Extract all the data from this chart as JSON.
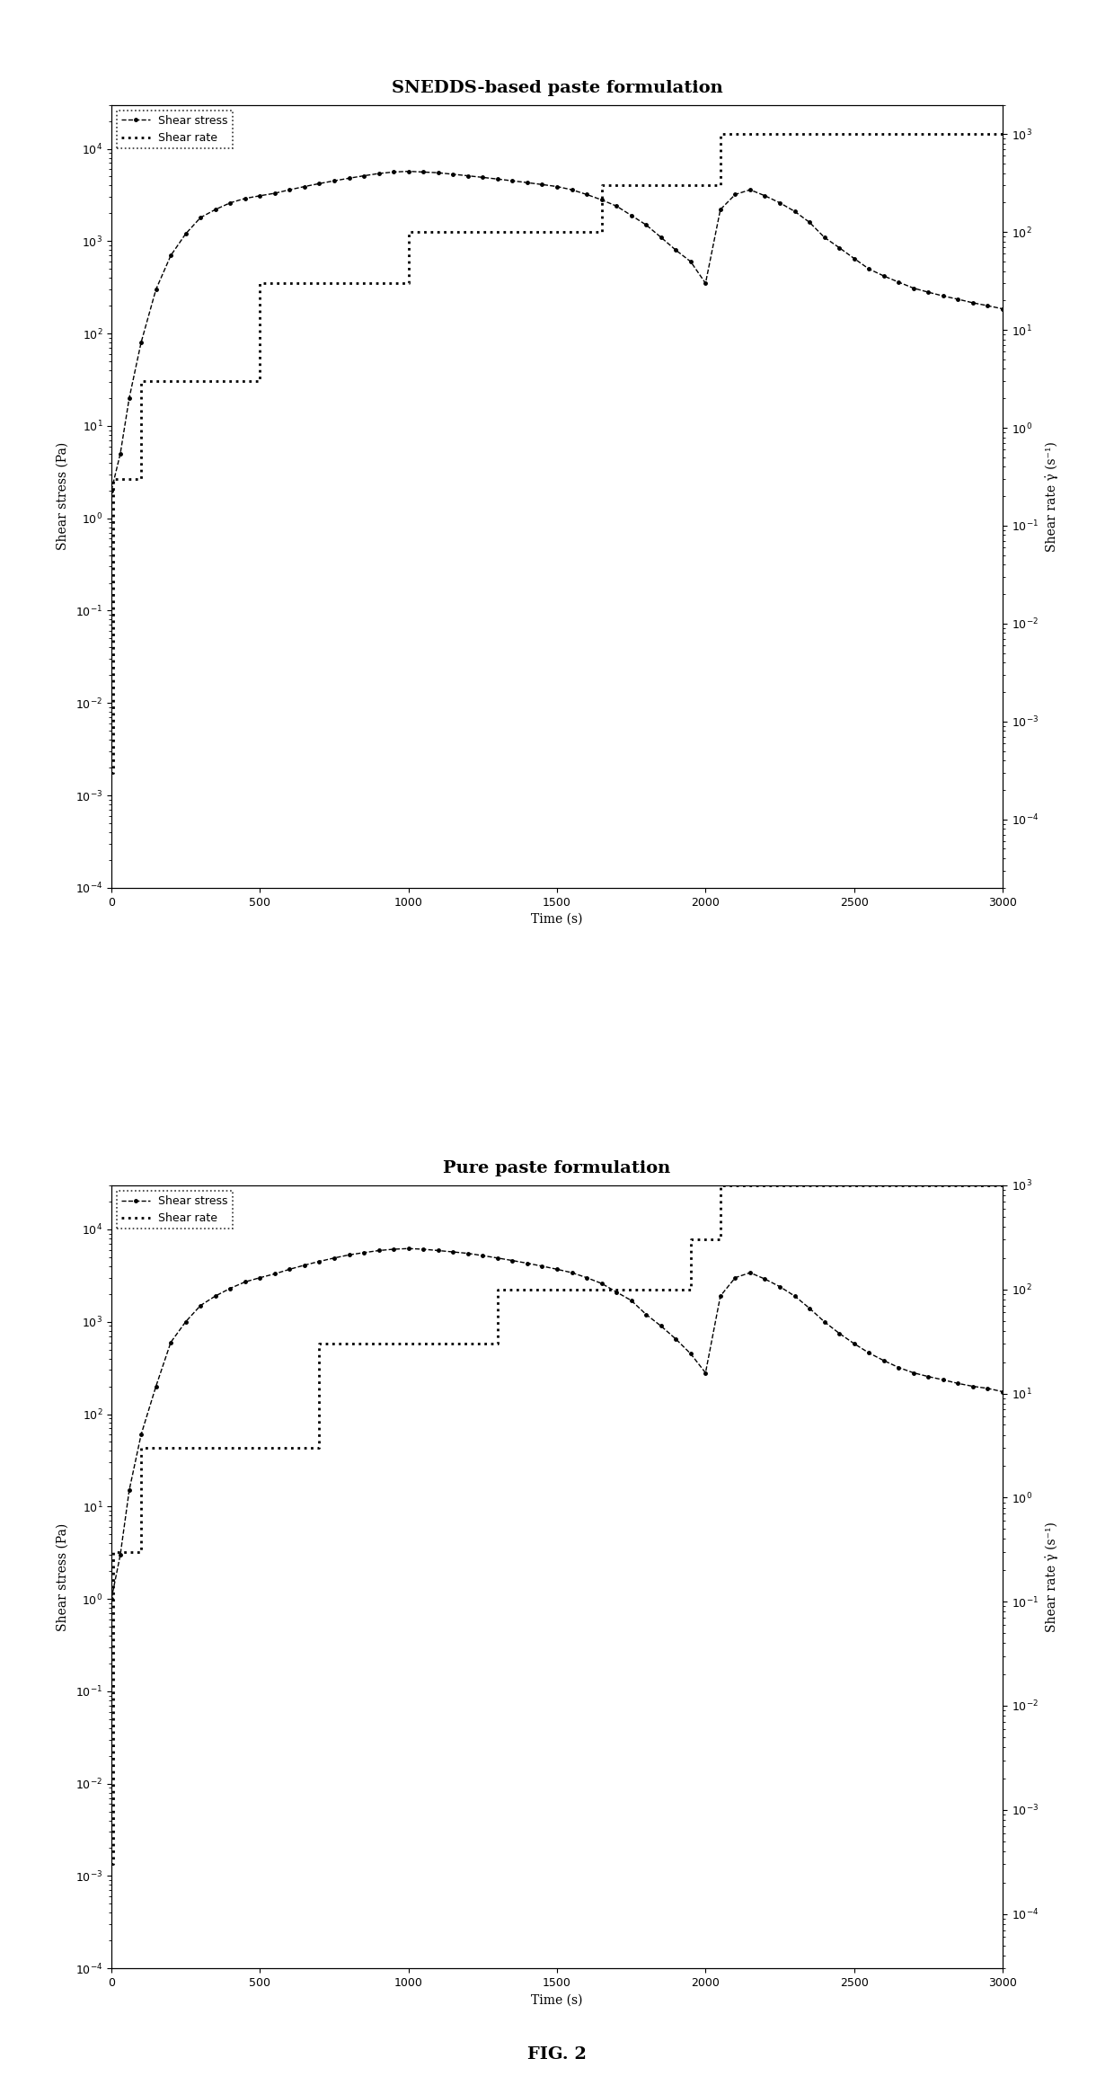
{
  "plot1": {
    "title": "SNEDDS-based paste formulation",
    "xlabel": "Time (s)",
    "ylabel_left": "Shear stress (Pa)",
    "ylabel_right": "Shear rate γ̇ (s⁻¹)",
    "xlim": [
      0,
      3000
    ],
    "ylim_left": [
      0.0001,
      30000
    ],
    "ylim_right": [
      2e-05,
      2000
    ],
    "xticks": [
      0,
      500,
      1000,
      1500,
      2000,
      2500,
      3000
    ],
    "shear_stress_t": [
      0,
      30,
      60,
      100,
      150,
      200,
      250,
      300,
      350,
      400,
      450,
      500,
      550,
      600,
      650,
      700,
      750,
      800,
      850,
      900,
      950,
      1000,
      1050,
      1100,
      1150,
      1200,
      1250,
      1300,
      1350,
      1400,
      1450,
      1500,
      1550,
      1600,
      1650,
      1700,
      1750,
      1800,
      1850,
      1900,
      1950,
      2000,
      2050,
      2100,
      2150,
      2200,
      2250,
      2300,
      2350,
      2400,
      2450,
      2500,
      2550,
      2600,
      2650,
      2700,
      2750,
      2800,
      2850,
      2900,
      2950,
      3000
    ],
    "shear_stress_v": [
      2,
      5,
      20,
      80,
      300,
      700,
      1200,
      1800,
      2200,
      2600,
      2900,
      3100,
      3300,
      3600,
      3900,
      4200,
      4500,
      4800,
      5100,
      5400,
      5600,
      5700,
      5600,
      5500,
      5300,
      5100,
      4900,
      4700,
      4500,
      4300,
      4100,
      3900,
      3600,
      3200,
      2800,
      2400,
      1900,
      1500,
      1100,
      800,
      600,
      350,
      2200,
      3200,
      3600,
      3100,
      2600,
      2100,
      1600,
      1100,
      850,
      650,
      500,
      420,
      360,
      310,
      280,
      255,
      235,
      215,
      200,
      185
    ],
    "shear_rate_t": [
      0,
      5,
      5,
      100,
      100,
      500,
      500,
      1000,
      1000,
      1650,
      1650,
      2050,
      2050,
      3000
    ],
    "shear_rate_v": [
      0.0003,
      0.0003,
      0.3,
      0.3,
      3,
      3,
      30,
      30,
      100,
      100,
      300,
      300,
      1000,
      1000
    ]
  },
  "plot2": {
    "title": "Pure paste formulation",
    "xlabel": "Time (s)",
    "ylabel_left": "Shear stress (Pa)",
    "ylabel_right": "Shear rate γ̇ (s⁻¹)",
    "xlim": [
      0,
      3000
    ],
    "ylim_left": [
      0.0001,
      30000
    ],
    "ylim_right": [
      3e-05,
      1000
    ],
    "xticks": [
      0,
      500,
      1000,
      1500,
      2000,
      2500,
      3000
    ],
    "shear_stress_t": [
      0,
      30,
      60,
      100,
      150,
      200,
      250,
      300,
      350,
      400,
      450,
      500,
      550,
      600,
      650,
      700,
      750,
      800,
      850,
      900,
      950,
      1000,
      1050,
      1100,
      1150,
      1200,
      1250,
      1300,
      1350,
      1400,
      1450,
      1500,
      1550,
      1600,
      1650,
      1700,
      1750,
      1800,
      1850,
      1900,
      1950,
      2000,
      2050,
      2100,
      2150,
      2200,
      2250,
      2300,
      2350,
      2400,
      2450,
      2500,
      2550,
      2600,
      2650,
      2700,
      2750,
      2800,
      2850,
      2900,
      2950,
      3000
    ],
    "shear_stress_v": [
      1,
      3,
      15,
      60,
      200,
      600,
      1000,
      1500,
      1900,
      2300,
      2700,
      3000,
      3300,
      3700,
      4100,
      4500,
      4900,
      5300,
      5600,
      5900,
      6100,
      6200,
      6100,
      5900,
      5700,
      5500,
      5200,
      4900,
      4600,
      4300,
      4000,
      3700,
      3400,
      3000,
      2600,
      2100,
      1700,
      1200,
      900,
      650,
      450,
      280,
      1900,
      3000,
      3400,
      2900,
      2400,
      1900,
      1400,
      1000,
      750,
      580,
      460,
      380,
      320,
      280,
      255,
      235,
      215,
      200,
      190,
      175
    ],
    "shear_rate_t": [
      0,
      5,
      5,
      100,
      100,
      700,
      700,
      1300,
      1300,
      1950,
      1950,
      2050,
      2050,
      3000
    ],
    "shear_rate_v": [
      0.0003,
      0.0003,
      0.3,
      0.3,
      3,
      3,
      30,
      30,
      100,
      100,
      300,
      300,
      1000,
      1000
    ]
  },
  "legend_labels": [
    "Shear stress",
    "Shear rate"
  ],
  "fig_label": "FIG. 2",
  "bg_color": "#ffffff",
  "title_fontsize": 14,
  "label_fontsize": 10,
  "tick_fontsize": 9
}
